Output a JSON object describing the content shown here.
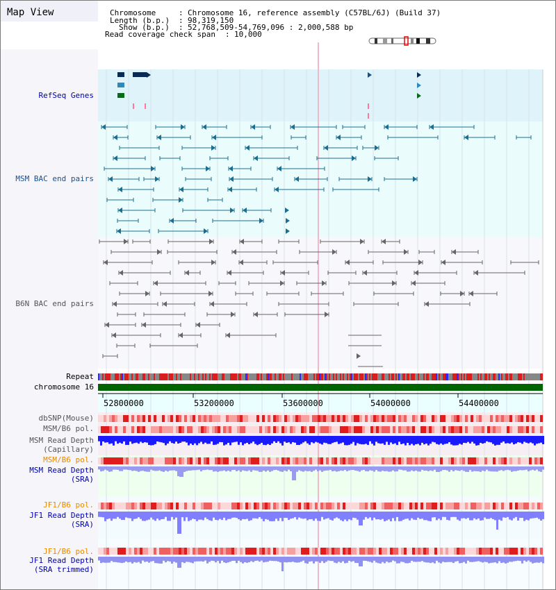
{
  "view_title": "Map View",
  "header": {
    "chromosome_key": "Chromosome",
    "chromosome_value": "Chromosome 16, reference assembly (C57BL/6J) (Build 37)",
    "length_key": "Length (b.p.)",
    "length_value": "98,319,150",
    "show_key": "Show (b.p.)",
    "show_value": "52,768,509-54,769,096 : 2,000,588 bp",
    "span_key": "Read coverage check span",
    "span_value": "10,000"
  },
  "tracks": {
    "refseq": "RefSeq Genes",
    "msm_bac": "MSM BAC end pairs",
    "b6n_bac": "B6N BAC end pairs",
    "repeat": "Repeat",
    "chromosome": "chromosome 16",
    "dbsnp": "dbSNP(Mouse)",
    "msm_b6_pol_1": "MSM/B6 pol.",
    "msm_read_depth_1": "MSM Read Depth",
    "msm_read_depth_1_sub": "(Capillary)",
    "msm_b6_pol_2": "MSM/B6 pol.",
    "msm_read_depth_2": "MSM Read Depth",
    "msm_read_depth_2_sub": "(SRA)",
    "jf1_b6_pol_1": "JF1/B6 pol.",
    "jf1_read_depth_1": "JF1 Read Depth",
    "jf1_read_depth_1_sub": "(SRA)",
    "jf1_b6_pol_2": "JF1/B6 pol.",
    "jf1_read_depth_2": "JF1 Read Depth",
    "jf1_read_depth_2_sub": "(SRA trimmed)"
  },
  "axis": {
    "ticks": [
      "52800000",
      "53200000",
      "53600000",
      "54000000",
      "54400000"
    ]
  },
  "colors": {
    "refseq_bg": "#dff3fb",
    "msm_bg": "#eafcfc",
    "b6n_bg": "#f7f7fc",
    "msm_feature": "#1b6e8f",
    "b6n_feature": "#666666",
    "chromosome_bar": "#006400",
    "snp_red": "#e0201c",
    "depth_dark": "#1a1aff",
    "depth_light": "#7f7fff"
  }
}
